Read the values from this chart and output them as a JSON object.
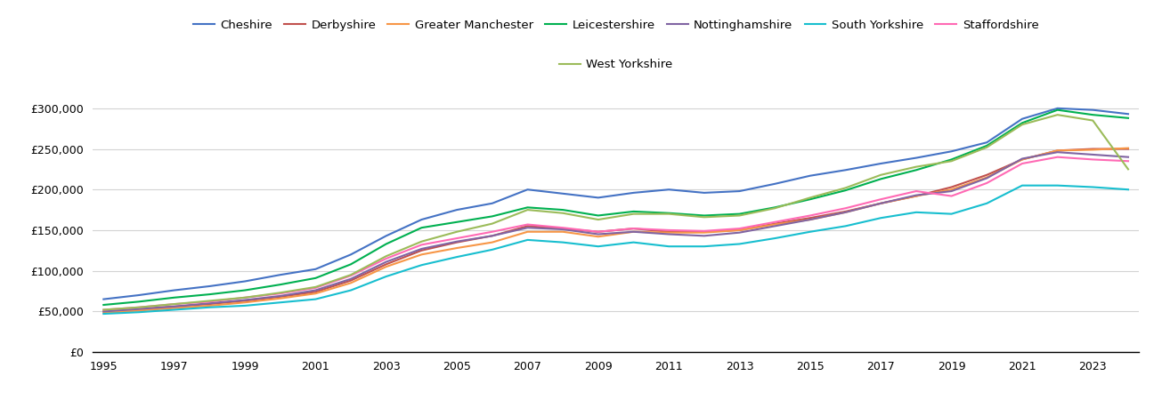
{
  "years": [
    1995,
    1996,
    1997,
    1998,
    1999,
    2000,
    2001,
    2002,
    2003,
    2004,
    2005,
    2006,
    2007,
    2008,
    2009,
    2010,
    2011,
    2012,
    2013,
    2014,
    2015,
    2016,
    2017,
    2018,
    2019,
    2020,
    2021,
    2022,
    2023,
    2024
  ],
  "series": {
    "Cheshire": {
      "color": "#4472C4",
      "values": [
        65000,
        70000,
        76000,
        81000,
        87000,
        95000,
        102000,
        120000,
        143000,
        163000,
        175000,
        183000,
        200000,
        195000,
        190000,
        196000,
        200000,
        196000,
        198000,
        207000,
        217000,
        224000,
        232000,
        239000,
        247000,
        258000,
        287000,
        300000,
        298000,
        293000
      ]
    },
    "Derbyshire": {
      "color": "#C0504D",
      "values": [
        50000,
        53000,
        56000,
        59000,
        63000,
        68000,
        74000,
        88000,
        108000,
        125000,
        135000,
        143000,
        155000,
        152000,
        148000,
        152000,
        148000,
        148000,
        150000,
        158000,
        165000,
        173000,
        183000,
        192000,
        203000,
        218000,
        237000,
        248000,
        250000,
        250000
      ]
    },
    "Greater Manchester": {
      "color": "#F79646",
      "values": [
        48000,
        51000,
        54000,
        57000,
        61000,
        66000,
        72000,
        85000,
        105000,
        120000,
        128000,
        135000,
        148000,
        148000,
        142000,
        148000,
        147000,
        147000,
        150000,
        157000,
        163000,
        172000,
        183000,
        192000,
        200000,
        215000,
        237000,
        248000,
        249000,
        251000
      ]
    },
    "Leicestershire": {
      "color": "#00B050",
      "values": [
        58000,
        62000,
        67000,
        71000,
        76000,
        83000,
        91000,
        108000,
        133000,
        153000,
        160000,
        167000,
        178000,
        175000,
        168000,
        173000,
        171000,
        168000,
        170000,
        178000,
        188000,
        199000,
        213000,
        224000,
        237000,
        254000,
        282000,
        298000,
        292000,
        288000
      ]
    },
    "Nottinghamshire": {
      "color": "#8064A2",
      "values": [
        50000,
        53000,
        56000,
        60000,
        64000,
        69000,
        76000,
        90000,
        111000,
        127000,
        136000,
        143000,
        153000,
        151000,
        145000,
        148000,
        145000,
        143000,
        147000,
        155000,
        163000,
        172000,
        183000,
        193000,
        198000,
        214000,
        238000,
        246000,
        243000,
        240000
      ]
    },
    "South Yorkshire": {
      "color": "#17BECF",
      "values": [
        47000,
        49000,
        52000,
        55000,
        57000,
        61000,
        65000,
        76000,
        93000,
        107000,
        117000,
        126000,
        138000,
        135000,
        130000,
        135000,
        130000,
        130000,
        133000,
        140000,
        148000,
        155000,
        165000,
        172000,
        170000,
        183000,
        205000,
        205000,
        203000,
        200000
      ]
    },
    "Staffordshire": {
      "color": "#FF69B4",
      "values": [
        52000,
        55000,
        59000,
        62000,
        67000,
        72000,
        79000,
        94000,
        115000,
        132000,
        140000,
        148000,
        157000,
        153000,
        148000,
        152000,
        150000,
        149000,
        152000,
        160000,
        168000,
        177000,
        188000,
        198000,
        192000,
        208000,
        232000,
        240000,
        237000,
        235000
      ]
    },
    "West Yorkshire": {
      "color": "#9BBB59",
      "values": [
        52000,
        55000,
        59000,
        63000,
        67000,
        73000,
        80000,
        95000,
        118000,
        136000,
        148000,
        158000,
        175000,
        171000,
        163000,
        170000,
        170000,
        166000,
        168000,
        177000,
        190000,
        202000,
        218000,
        228000,
        235000,
        252000,
        280000,
        292000,
        285000,
        225000
      ]
    }
  },
  "ylim": [
    0,
    325000
  ],
  "yticks": [
    0,
    50000,
    100000,
    150000,
    200000,
    250000,
    300000
  ],
  "xticks": [
    1995,
    1997,
    1999,
    2001,
    2003,
    2005,
    2007,
    2009,
    2011,
    2013,
    2015,
    2017,
    2019,
    2021,
    2023
  ],
  "background_color": "#ffffff",
  "grid_color": "#d3d3d3",
  "legend_row1": [
    "Cheshire",
    "Derbyshire",
    "Greater Manchester",
    "Leicestershire",
    "Nottinghamshire",
    "South Yorkshire",
    "Staffordshire"
  ],
  "legend_row2": [
    "West Yorkshire"
  ]
}
